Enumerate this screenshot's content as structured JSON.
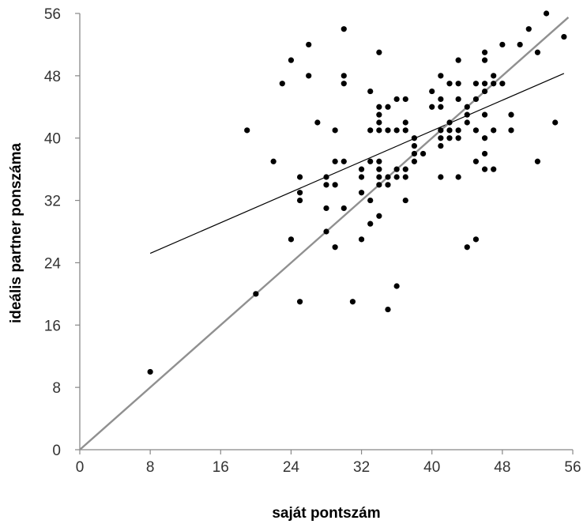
{
  "chart_data": {
    "type": "scatter",
    "xlabel": "saját pontszám",
    "ylabel": "ideális partner ponszáma",
    "xlim": [
      0,
      56
    ],
    "ylim": [
      0,
      56
    ],
    "x_ticks": [
      0,
      8,
      16,
      24,
      32,
      40,
      48,
      56
    ],
    "y_ticks": [
      0,
      8,
      16,
      24,
      32,
      40,
      48,
      56
    ],
    "grid": false,
    "colors": {
      "points": "#000000",
      "regression_line": "#000000",
      "identity_line": "#909090",
      "axes": "#888888"
    },
    "series": [
      {
        "points": [
          [
            8,
            10
          ],
          [
            19,
            41
          ],
          [
            20,
            20
          ],
          [
            22,
            37
          ],
          [
            23,
            47
          ],
          [
            24,
            27
          ],
          [
            24,
            50
          ],
          [
            25,
            19
          ],
          [
            25,
            32
          ],
          [
            25,
            33
          ],
          [
            25,
            35
          ],
          [
            26,
            48
          ],
          [
            26,
            52
          ],
          [
            27,
            42
          ],
          [
            28,
            28
          ],
          [
            28,
            31
          ],
          [
            28,
            34
          ],
          [
            28,
            35
          ],
          [
            29,
            26
          ],
          [
            29,
            34
          ],
          [
            29,
            37
          ],
          [
            29,
            41
          ],
          [
            30,
            31
          ],
          [
            30,
            37
          ],
          [
            30,
            47
          ],
          [
            30,
            48
          ],
          [
            30,
            54
          ],
          [
            31,
            19
          ],
          [
            32,
            27
          ],
          [
            32,
            33
          ],
          [
            32,
            35
          ],
          [
            32,
            36
          ],
          [
            33,
            29
          ],
          [
            33,
            32
          ],
          [
            33,
            37
          ],
          [
            33,
            41
          ],
          [
            33,
            46
          ],
          [
            34,
            30
          ],
          [
            34,
            34
          ],
          [
            34,
            35
          ],
          [
            34,
            36
          ],
          [
            34,
            37
          ],
          [
            34,
            41
          ],
          [
            34,
            42
          ],
          [
            34,
            43
          ],
          [
            34,
            44
          ],
          [
            34,
            51
          ],
          [
            35,
            18
          ],
          [
            35,
            34
          ],
          [
            35,
            35
          ],
          [
            35,
            41
          ],
          [
            35,
            44
          ],
          [
            36,
            21
          ],
          [
            36,
            35
          ],
          [
            36,
            36
          ],
          [
            36,
            41
          ],
          [
            36,
            45
          ],
          [
            37,
            32
          ],
          [
            37,
            35
          ],
          [
            37,
            36
          ],
          [
            37,
            41
          ],
          [
            37,
            42
          ],
          [
            37,
            45
          ],
          [
            38,
            37
          ],
          [
            38,
            38
          ],
          [
            38,
            39
          ],
          [
            38,
            40
          ],
          [
            39,
            38
          ],
          [
            40,
            44
          ],
          [
            40,
            46
          ],
          [
            41,
            35
          ],
          [
            41,
            39
          ],
          [
            41,
            40
          ],
          [
            41,
            41
          ],
          [
            41,
            44
          ],
          [
            41,
            45
          ],
          [
            41,
            48
          ],
          [
            42,
            40
          ],
          [
            42,
            41
          ],
          [
            42,
            42
          ],
          [
            42,
            47
          ],
          [
            43,
            35
          ],
          [
            43,
            40
          ],
          [
            43,
            41
          ],
          [
            43,
            45
          ],
          [
            43,
            47
          ],
          [
            43,
            50
          ],
          [
            44,
            26
          ],
          [
            44,
            42
          ],
          [
            44,
            43
          ],
          [
            44,
            44
          ],
          [
            45,
            27
          ],
          [
            45,
            37
          ],
          [
            45,
            41
          ],
          [
            45,
            45
          ],
          [
            45,
            47
          ],
          [
            46,
            36
          ],
          [
            46,
            38
          ],
          [
            46,
            40
          ],
          [
            46,
            43
          ],
          [
            46,
            46
          ],
          [
            46,
            47
          ],
          [
            46,
            50
          ],
          [
            46,
            51
          ],
          [
            47,
            36
          ],
          [
            47,
            41
          ],
          [
            47,
            47
          ],
          [
            47,
            48
          ],
          [
            48,
            47
          ],
          [
            48,
            52
          ],
          [
            49,
            41
          ],
          [
            49,
            43
          ],
          [
            50,
            52
          ],
          [
            51,
            54
          ],
          [
            52,
            37
          ],
          [
            52,
            51
          ],
          [
            53,
            56
          ],
          [
            54,
            42
          ],
          [
            55,
            53
          ]
        ]
      }
    ],
    "lines": [
      {
        "kind": "regression",
        "from": [
          8,
          25.2
        ],
        "to": [
          55,
          48.3
        ]
      },
      {
        "kind": "identity",
        "from": [
          0,
          0
        ],
        "to": [
          55.5,
          55.5
        ]
      }
    ]
  }
}
